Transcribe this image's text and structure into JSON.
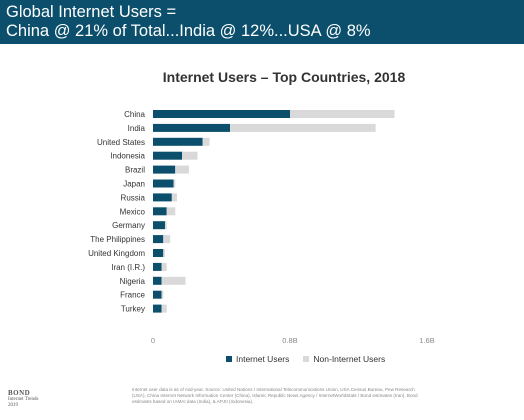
{
  "header": {
    "line1": "Global Internet Users =",
    "line2": "China @ 21% of Total...India @ 12%...USA @ 8%"
  },
  "colors": {
    "header_bg": "#0b4f6c",
    "internet_users": "#0b4f6c",
    "non_internet_users": "#d9d9d9"
  },
  "chart_data": {
    "type": "bar",
    "orientation": "horizontal",
    "stacked": true,
    "title": "Internet Users – Top Countries, 2018",
    "categories": [
      "China",
      "India",
      "United States",
      "Indonesia",
      "Brazil",
      "Japan",
      "Russia",
      "Mexico",
      "Germany",
      "The Philippines",
      "United Kingdom",
      "Iran (I.R.)",
      "Nigeria",
      "France",
      "Turkey"
    ],
    "series": [
      {
        "name": "Internet Users",
        "values": [
          0.8,
          0.45,
          0.29,
          0.17,
          0.13,
          0.12,
          0.11,
          0.08,
          0.07,
          0.06,
          0.06,
          0.05,
          0.05,
          0.05,
          0.05
        ]
      },
      {
        "name": "Non-Internet Users",
        "values": [
          0.61,
          0.85,
          0.04,
          0.09,
          0.08,
          0.01,
          0.03,
          0.05,
          0.01,
          0.04,
          0.01,
          0.03,
          0.14,
          0.01,
          0.03
        ]
      }
    ],
    "xlim": [
      0,
      1.6
    ],
    "xticks": [
      {
        "value": 0,
        "label": "0"
      },
      {
        "value": 0.8,
        "label": "0.8B"
      },
      {
        "value": 1.6,
        "label": "1.6B"
      }
    ],
    "grid": false,
    "legend": "bottom"
  },
  "footer": {
    "logo_brand": "BOND",
    "logo_sub1": "Internet Trends",
    "logo_sub2": "2019",
    "note": "Internet user data is as of mid-year. Source: United Nations / International Telecommunications Union, USA Census Bureau, Pew Research (USA), China Internet Network Information Center (China), Islamic Republic News Agency / InternetWorldStats / Bond estimates (Iran), Bond estimates based on IAMAI data (India), & APJII (Indonesia)."
  }
}
